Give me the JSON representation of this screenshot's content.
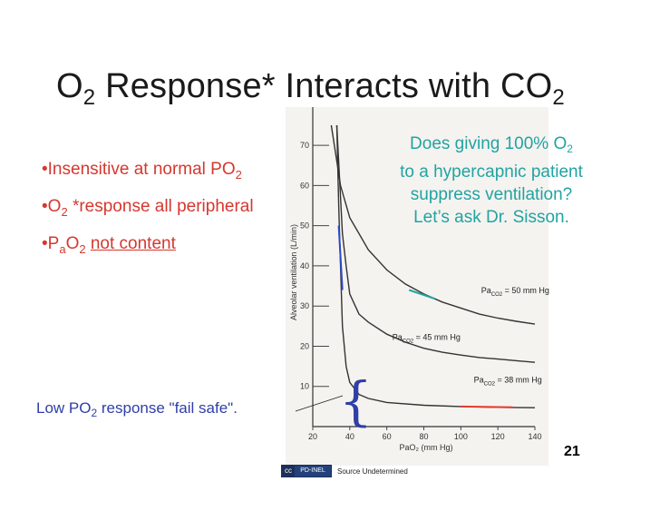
{
  "title": {
    "main": "O",
    "sub": "2",
    "rest": " Response* Interacts  with CO",
    "sub2": "2"
  },
  "bullets": [
    {
      "prefix": "•Insensitive at normal PO",
      "sub": "2"
    },
    {
      "prefix": "•O",
      "sub": "2",
      "rest": " *response all peripheral"
    },
    {
      "prefix": "•P",
      "sub_a": "a",
      "mid": "O",
      "sub": "2",
      "underlined": "not content"
    }
  ],
  "callout": {
    "line1_pre": "Does giving 100% O",
    "line1_sub": "2",
    "line2": "to a hypercapnic patient",
    "line3": "suppress ventilation?",
    "line4": "Let’s ask Dr. Sisson."
  },
  "failsafe": {
    "pre": "Low PO",
    "sub": "2",
    "post": " response \"fail safe\"."
  },
  "slide_number": "21",
  "credit": {
    "badge_left": "cc",
    "badge_right": "PD-INEL",
    "text": "Source Undetermined"
  },
  "chart_data": {
    "type": "line",
    "ylabel": "Alveolar ventilation (L/min)",
    "xlabel": "PaO₂ (mm Hg)",
    "x_ticks": [
      "20",
      "40",
      "60",
      "80",
      "100",
      "120",
      "140"
    ],
    "y_ticks": [
      "10",
      "20",
      "30",
      "40",
      "50",
      "60",
      "70"
    ],
    "xlim": [
      20,
      140
    ],
    "ylim": [
      0,
      75
    ],
    "series": [
      {
        "name": "Pa",
        "sub": "CO2",
        "suffix": " = 50 mm Hg",
        "points": [
          [
            30,
            75
          ],
          [
            35,
            60
          ],
          [
            40,
            52
          ],
          [
            50,
            44
          ],
          [
            60,
            39
          ],
          [
            70,
            35.5
          ],
          [
            80,
            33
          ],
          [
            90,
            31
          ],
          [
            100,
            29.5
          ],
          [
            110,
            28
          ],
          [
            120,
            27
          ],
          [
            130,
            26.2
          ],
          [
            140,
            25.5
          ]
        ]
      },
      {
        "name": "Pa",
        "sub": "CO2",
        "suffix": " = 45 mm Hg",
        "points": [
          [
            33,
            75
          ],
          [
            36,
            48
          ],
          [
            38,
            40
          ],
          [
            40,
            33
          ],
          [
            45,
            28
          ],
          [
            50,
            26
          ],
          [
            60,
            23
          ],
          [
            70,
            21
          ],
          [
            80,
            19.5
          ],
          [
            90,
            18.5
          ],
          [
            100,
            17.8
          ],
          [
            110,
            17.2
          ],
          [
            120,
            16.8
          ],
          [
            130,
            16.4
          ],
          [
            140,
            16
          ]
        ]
      },
      {
        "name": "Pa",
        "sub": "CO2",
        "suffix": " = 38 mm Hg",
        "points": [
          [
            33,
            75
          ],
          [
            34,
            55
          ],
          [
            35,
            40
          ],
          [
            36,
            25
          ],
          [
            38,
            15
          ],
          [
            40,
            11
          ],
          [
            45,
            8
          ],
          [
            50,
            7
          ],
          [
            60,
            6
          ],
          [
            80,
            5.3
          ],
          [
            100,
            5
          ],
          [
            120,
            4.8
          ],
          [
            140,
            4.7
          ]
        ]
      }
    ],
    "highlights": [
      {
        "color": "#1fa4a0",
        "points": [
          [
            72,
            34
          ],
          [
            86,
            31.8
          ]
        ]
      },
      {
        "color": "#e23b2e",
        "points": [
          [
            100,
            5
          ],
          [
            128,
            4.8
          ]
        ]
      },
      {
        "color": "#2f49c8",
        "points": [
          [
            34,
            50
          ],
          [
            36,
            34
          ]
        ]
      }
    ]
  }
}
